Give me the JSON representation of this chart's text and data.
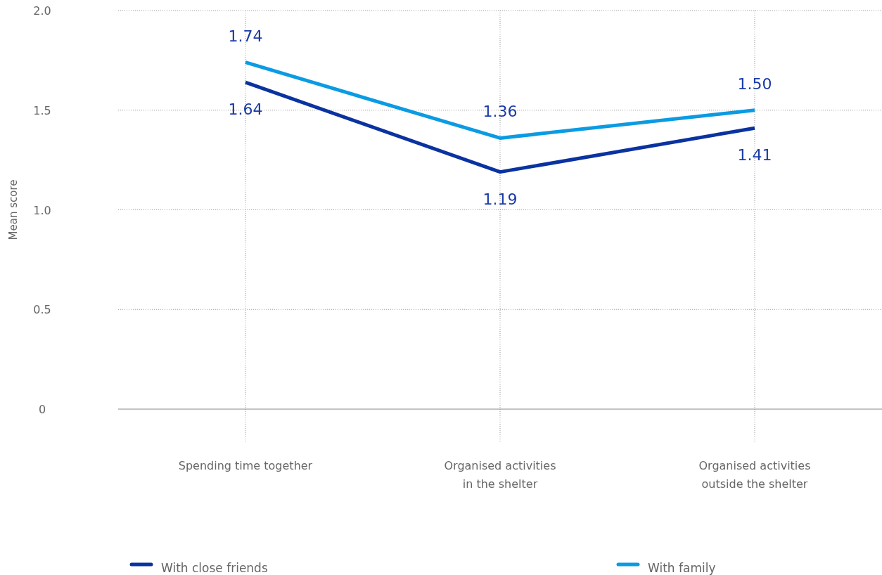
{
  "chart_data": {
    "type": "line",
    "ylabel": "Mean score",
    "categories": [
      "Spending time together",
      "Organised activities in the shelter",
      "Organised activities outside the shelter"
    ],
    "series": [
      {
        "name": "With close friends",
        "color": "#0a32a0",
        "values": [
          1.64,
          1.19,
          1.41
        ],
        "value_labels": [
          "1.64",
          "1.19",
          "1.41"
        ]
      },
      {
        "name": "With family",
        "color": "#0a9be3",
        "values": [
          1.74,
          1.36,
          1.5
        ],
        "value_labels": [
          "1.74",
          "1.36",
          "1.50"
        ]
      }
    ],
    "ylim": [
      0,
      2
    ],
    "yticks": [
      {
        "value": 0,
        "label": "0"
      },
      {
        "value": 0.5,
        "label": "0.5"
      },
      {
        "value": 1,
        "label": "1.0"
      },
      {
        "value": 1.5,
        "label": "1.5"
      },
      {
        "value": 2,
        "label": "2.0"
      }
    ],
    "grid": true,
    "legend": "bottom",
    "marker": "none",
    "line_style": "solid"
  }
}
